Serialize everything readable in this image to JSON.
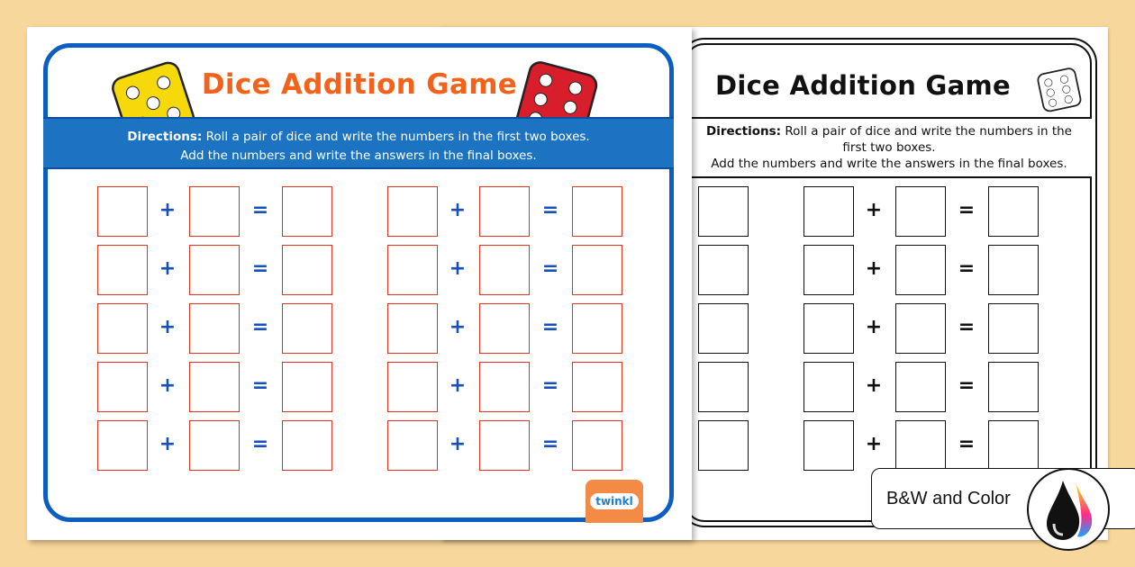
{
  "worksheet": {
    "title": "Dice Addition Game",
    "directions_label": "Directions:",
    "directions_line1": " Roll a pair of dice and write the numbers in the first two boxes.",
    "directions_line2": "Add the numbers and write the answers in the final boxes.",
    "rows": 5,
    "groups_per_row": 2,
    "plus_symbol": "+",
    "equals_symbol": "=",
    "logo_text": "twinkl"
  },
  "badge": {
    "label": "B&W and Color",
    "icon": "ink-drops-icon"
  },
  "colors": {
    "background": "#f8d79c",
    "frame_blue": "#0c5ec2",
    "band_blue": "#1b73c1",
    "title_orange": "#f2621b",
    "box_red": "#e3331d",
    "dice_yellow": "#f5d90a",
    "dice_red": "#d81e2a"
  }
}
